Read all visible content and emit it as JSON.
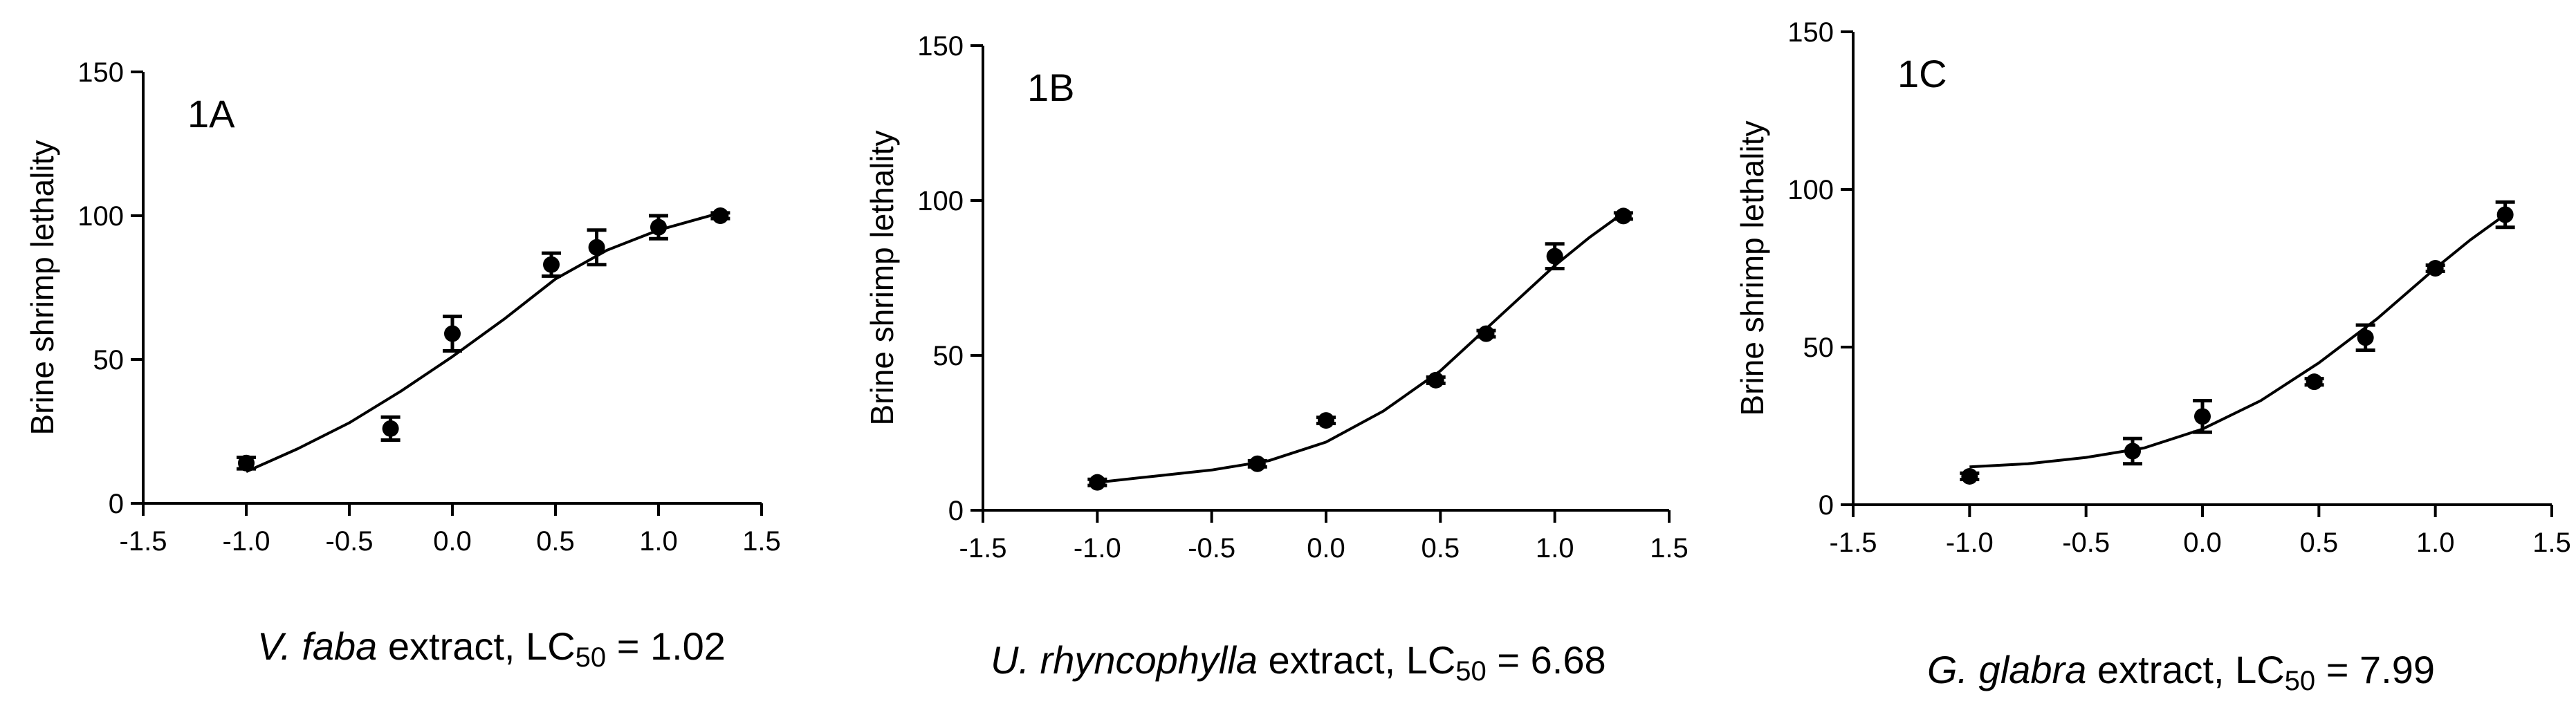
{
  "chart_data": [
    {
      "type": "scatter",
      "panel_label": "1A",
      "ylabel": "Brine shrimp lethality",
      "xlim": [
        -1.5,
        1.5
      ],
      "ylim": [
        0,
        150
      ],
      "xticks": [
        "-1.5",
        "-1.0",
        "-0.5",
        "0.0",
        "0.5",
        "1.0",
        "1.5"
      ],
      "yticks": [
        "0",
        "50",
        "100",
        "150"
      ],
      "points": [
        {
          "x": -1.0,
          "y": 14,
          "err": 2
        },
        {
          "x": -0.3,
          "y": 26,
          "err": 4
        },
        {
          "x": 0.0,
          "y": 59,
          "err": 6
        },
        {
          "x": 0.48,
          "y": 83,
          "err": 4
        },
        {
          "x": 0.7,
          "y": 89,
          "err": 6
        },
        {
          "x": 1.0,
          "y": 96,
          "err": 4
        },
        {
          "x": 1.3,
          "y": 100,
          "err": 1
        }
      ],
      "fit": [
        [
          -1.0,
          11
        ],
        [
          -0.75,
          19
        ],
        [
          -0.5,
          28
        ],
        [
          -0.25,
          39
        ],
        [
          0.0,
          51
        ],
        [
          0.25,
          64
        ],
        [
          0.5,
          78
        ],
        [
          0.75,
          88
        ],
        [
          1.0,
          95
        ],
        [
          1.15,
          98
        ],
        [
          1.3,
          101
        ]
      ],
      "caption": {
        "species": "V. faba",
        "text": " extract, LC",
        "sub": "50",
        "value": " = 1.02"
      }
    },
    {
      "type": "scatter",
      "panel_label": "1B",
      "ylabel": "Brine shrimp lethality",
      "xlim": [
        -1.5,
        1.5
      ],
      "ylim": [
        0,
        150
      ],
      "xticks": [
        "-1.5",
        "-1.0",
        "-0.5",
        "0.0",
        "0.5",
        "1.0",
        "1.5"
      ],
      "yticks": [
        "0",
        "50",
        "100",
        "150"
      ],
      "points": [
        {
          "x": -1.0,
          "y": 9,
          "err": 1
        },
        {
          "x": -0.3,
          "y": 15,
          "err": 1
        },
        {
          "x": 0.0,
          "y": 29,
          "err": 1
        },
        {
          "x": 0.48,
          "y": 42,
          "err": 1
        },
        {
          "x": 0.7,
          "y": 57,
          "err": 1
        },
        {
          "x": 1.0,
          "y": 82,
          "err": 4
        },
        {
          "x": 1.3,
          "y": 95,
          "err": 1
        }
      ],
      "fit": [
        [
          -1.0,
          9
        ],
        [
          -0.75,
          11
        ],
        [
          -0.5,
          13
        ],
        [
          -0.25,
          16
        ],
        [
          0.0,
          22
        ],
        [
          0.25,
          32
        ],
        [
          0.5,
          45
        ],
        [
          0.75,
          62
        ],
        [
          1.0,
          79
        ],
        [
          1.15,
          88
        ],
        [
          1.3,
          96
        ]
      ],
      "caption": {
        "species": "U. rhyncophylla",
        "text": " extract, LC",
        "sub": "50",
        "value": " = 6.68"
      }
    },
    {
      "type": "scatter",
      "panel_label": "1C",
      "ylabel": "Brine shrimp lethality",
      "xlim": [
        -1.5,
        1.5
      ],
      "ylim": [
        0,
        150
      ],
      "xticks": [
        "-1.5",
        "-1.0",
        "-0.5",
        "0.0",
        "0.5",
        "1.0",
        "1.5"
      ],
      "yticks": [
        "0",
        "50",
        "100",
        "150"
      ],
      "points": [
        {
          "x": -1.0,
          "y": 9,
          "err": 1
        },
        {
          "x": -0.3,
          "y": 17,
          "err": 4
        },
        {
          "x": 0.0,
          "y": 28,
          "err": 5
        },
        {
          "x": 0.48,
          "y": 39,
          "err": 1
        },
        {
          "x": 0.7,
          "y": 53,
          "err": 4
        },
        {
          "x": 1.0,
          "y": 75,
          "err": 1
        },
        {
          "x": 1.3,
          "y": 92,
          "err": 4
        }
      ],
      "fit": [
        [
          -1.0,
          12
        ],
        [
          -0.75,
          13
        ],
        [
          -0.5,
          15
        ],
        [
          -0.25,
          18
        ],
        [
          0.0,
          24
        ],
        [
          0.25,
          33
        ],
        [
          0.5,
          45
        ],
        [
          0.75,
          59
        ],
        [
          1.0,
          75
        ],
        [
          1.15,
          84
        ],
        [
          1.3,
          92
        ]
      ],
      "caption": {
        "species": "G. glabra",
        "text": " extract, LC",
        "sub": "50",
        "value": " = 7.99"
      }
    }
  ]
}
